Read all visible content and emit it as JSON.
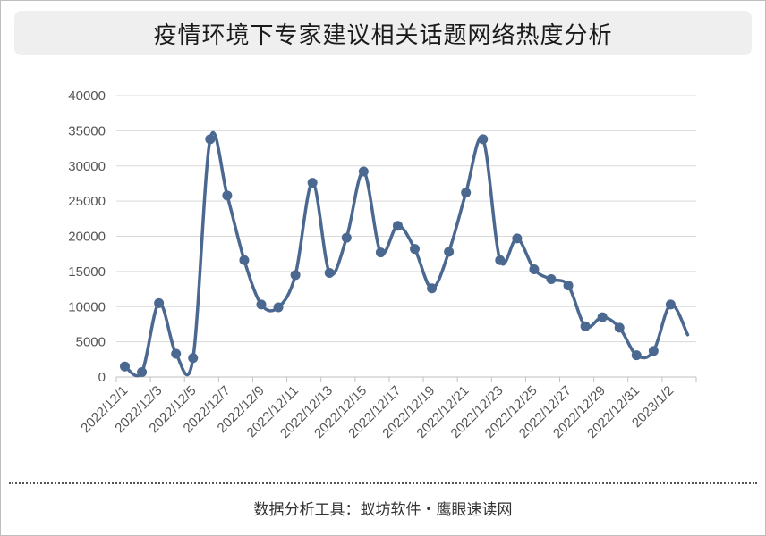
{
  "footer": {
    "text": "数据分析工具：蚁坊软件・鹰眼速读网"
  },
  "chart_data": {
    "type": "line",
    "title": "疫情环境下专家建议相关话题网络热度分析",
    "xlabel": "",
    "ylabel": "",
    "ylim": [
      0,
      40000
    ],
    "yticks": [
      0,
      5000,
      10000,
      15000,
      20000,
      25000,
      30000,
      35000,
      40000
    ],
    "grid": true,
    "smooth": true,
    "line_color": "#4a6890",
    "x": [
      "2022/12/1",
      "2022/12/2",
      "2022/12/3",
      "2022/12/4",
      "2022/12/5",
      "2022/12/6",
      "2022/12/7",
      "2022/12/8",
      "2022/12/9",
      "2022/12/10",
      "2022/12/11",
      "2022/12/12",
      "2022/12/13",
      "2022/12/14",
      "2022/12/15",
      "2022/12/16",
      "2022/12/17",
      "2022/12/18",
      "2022/12/19",
      "2022/12/20",
      "2022/12/21",
      "2022/12/22",
      "2022/12/23",
      "2022/12/24",
      "2022/12/25",
      "2022/12/26",
      "2022/12/27",
      "2022/12/28",
      "2022/12/29",
      "2022/12/30",
      "2022/12/31",
      "2023/1/1",
      "2023/1/2",
      "2023/1/3"
    ],
    "xtick_labels": [
      "2022/12/1",
      "2022/12/3",
      "2022/12/5",
      "2022/12/7",
      "2022/12/9",
      "2022/12/11",
      "2022/12/13",
      "2022/12/15",
      "2022/12/17",
      "2022/12/19",
      "2022/12/21",
      "2022/12/23",
      "2022/12/25",
      "2022/12/27",
      "2022/12/29",
      "2022/12/31",
      "2023/1/2"
    ],
    "series": [
      {
        "name": "",
        "values": [
          1500,
          700,
          10500,
          3300,
          2700,
          33800,
          25800,
          16600,
          10300,
          9900,
          14500,
          27600,
          14800,
          19800,
          29200,
          17700,
          21500,
          18200,
          12600,
          17800,
          26200,
          33800,
          16600,
          19700,
          15300,
          13900,
          13000,
          7200,
          8500,
          7000,
          3100,
          3700,
          10300,
          6000
        ],
        "markers": [
          true,
          true,
          true,
          true,
          true,
          true,
          true,
          true,
          true,
          true,
          true,
          true,
          true,
          true,
          true,
          true,
          true,
          true,
          true,
          true,
          true,
          true,
          true,
          true,
          true,
          true,
          true,
          true,
          true,
          true,
          true,
          true,
          true,
          false
        ]
      }
    ]
  }
}
